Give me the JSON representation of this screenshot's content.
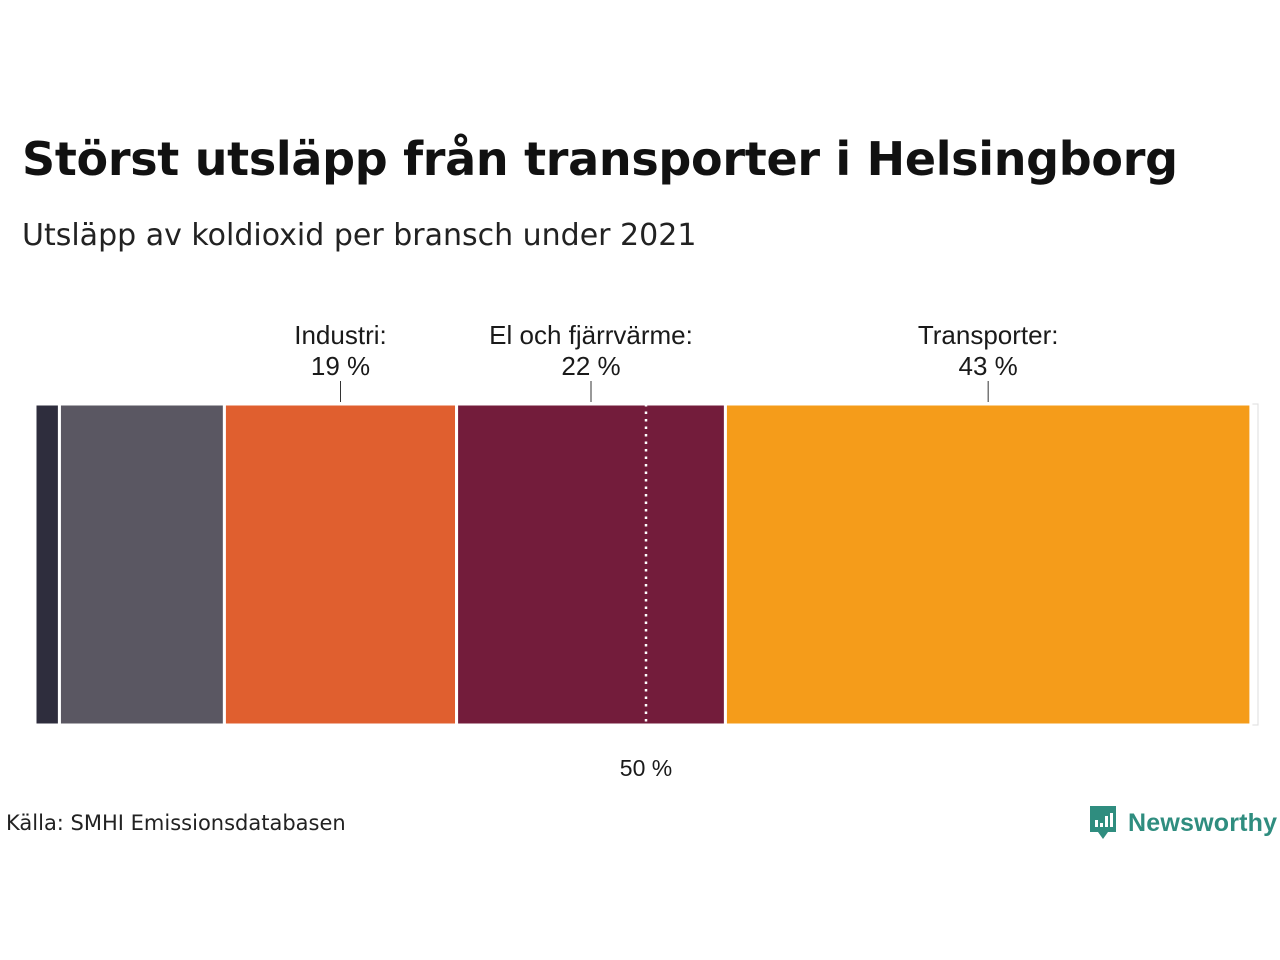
{
  "header": {
    "title": "Störst utsläpp från transporter i Helsingborg",
    "subtitle": "Utsläpp av koldioxid per bransch under 2021"
  },
  "footer": {
    "source": "Källa: SMHI Emissionsdatabasen",
    "brand": "Newsworthy"
  },
  "chart_data": {
    "type": "bar",
    "orientation": "horizontal-stacked-100",
    "unit": "%",
    "segments": [
      {
        "name": "",
        "value": 2,
        "color": "#2e2d3d",
        "label": null
      },
      {
        "name": "",
        "value": 13.5,
        "color": "#5a5762",
        "label": null
      },
      {
        "name": "Industri",
        "value": 19,
        "color": "#e05f2f",
        "label": [
          "Industri:",
          "19 %"
        ]
      },
      {
        "name": "El och fjärrvärme",
        "value": 22,
        "color": "#731c3b",
        "label": [
          "El och fjärrvärme:",
          "22 %"
        ]
      },
      {
        "name": "Transporter",
        "value": 43,
        "color": "#f59c1a",
        "label": [
          "Transporter:",
          "43 %"
        ]
      }
    ],
    "reference_line": {
      "value": 50,
      "label": "50 %",
      "style": "dotted"
    },
    "xlim": [
      0,
      100
    ]
  }
}
